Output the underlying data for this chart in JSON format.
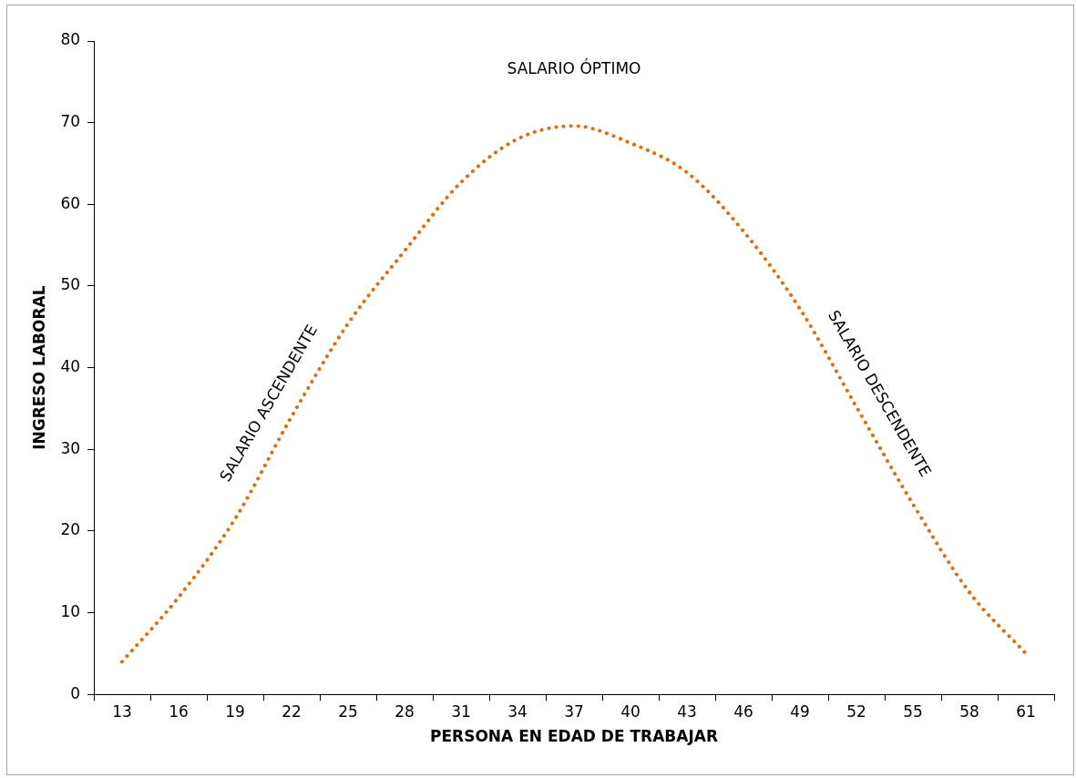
{
  "chart_data": {
    "type": "line",
    "xlabel": "PERSONA EN EDAD DE TRABAJAR",
    "ylabel": "INGRESO LABORAL",
    "categories": [
      "13",
      "16",
      "19",
      "22",
      "25",
      "28",
      "31",
      "34",
      "37",
      "40",
      "43",
      "46",
      "49",
      "52",
      "55",
      "58",
      "61"
    ],
    "series": [
      {
        "color": "#e36c09",
        "values": [
          4,
          11.9,
          21.5,
          34,
          45.4,
          54.3,
          62.7,
          68,
          69.6,
          67.5,
          63.9,
          56.7,
          47.2,
          35.2,
          23.3,
          12.5,
          5
        ]
      }
    ],
    "ylim": [
      0,
      80
    ],
    "yticks": [
      0,
      10,
      20,
      30,
      40,
      50,
      60,
      70,
      80
    ],
    "grid": false,
    "legend": false,
    "marker": "none",
    "line_style": "dotted",
    "annotations": [
      "SALARIO ÓPTIMO",
      {
        "text": "SALARIO ASCENDENTE",
        "x": "22",
        "y": 34
      },
      {
        "text": "SALARIO DESCENDENTE",
        "x": "52",
        "y": 35.2
      }
    ]
  }
}
